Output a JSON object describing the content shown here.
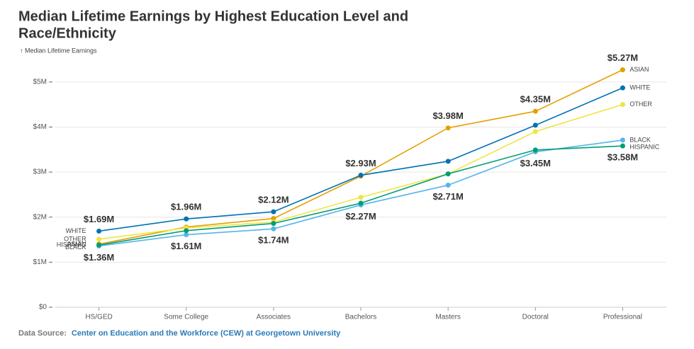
{
  "chart_data": {
    "type": "line",
    "title_lines": [
      "Median Lifetime Earnings by Highest Education Level and",
      "Race/Ethnicity"
    ],
    "y_label": "↑ Median Lifetime Earnings",
    "categories": [
      "HS/GED",
      "Some College",
      "Associates",
      "Bachelors",
      "Masters",
      "Doctoral",
      "Professional"
    ],
    "series": [
      {
        "name": "ASIAN",
        "color": "#e69f00",
        "values": [
          1400000,
          1780000,
          1970000,
          2910000,
          3980000,
          4350000,
          5270000
        ],
        "value_labels": [
          null,
          null,
          null,
          null,
          "$3.98M",
          "$4.35M",
          "$5.27M"
        ]
      },
      {
        "name": "WHITE",
        "color": "#0072b2",
        "values": [
          1690000,
          1960000,
          2120000,
          2930000,
          3240000,
          4040000,
          4870000
        ],
        "value_labels": [
          "$1.69M",
          "$1.96M",
          "$2.12M",
          "$2.93M",
          null,
          null,
          null
        ]
      },
      {
        "name": "OTHER",
        "color": "#f0e442",
        "values": [
          1510000,
          1760000,
          1890000,
          2440000,
          2960000,
          3900000,
          4500000
        ]
      },
      {
        "name": "BLACK",
        "color": "#56b4e9",
        "values": [
          1360000,
          1610000,
          1740000,
          2270000,
          2710000,
          3450000,
          3710000
        ],
        "value_labels": [
          "$1.36M",
          "$1.61M",
          "$1.74M",
          "$2.27M",
          "$2.71M",
          "$3.45M",
          null
        ]
      },
      {
        "name": "HISPANIC",
        "color": "#009e73",
        "values": [
          1380000,
          1700000,
          1860000,
          2310000,
          2960000,
          3490000,
          3580000
        ],
        "value_labels": [
          null,
          null,
          null,
          null,
          null,
          null,
          "$3.58M"
        ]
      }
    ],
    "ylim": [
      0,
      5500000
    ],
    "yticks": [
      {
        "value": 0,
        "label": "$0"
      },
      {
        "value": 1000000,
        "label": "$1M"
      },
      {
        "value": 2000000,
        "label": "$2M"
      },
      {
        "value": 3000000,
        "label": "$3M"
      },
      {
        "value": 4000000,
        "label": "$4M"
      },
      {
        "value": 5000000,
        "label": "$5M"
      }
    ],
    "grid": true,
    "source": {
      "prefix": "Data Source:",
      "link": "Center on Education and the Workforce (CEW) at Georgetown University"
    }
  }
}
